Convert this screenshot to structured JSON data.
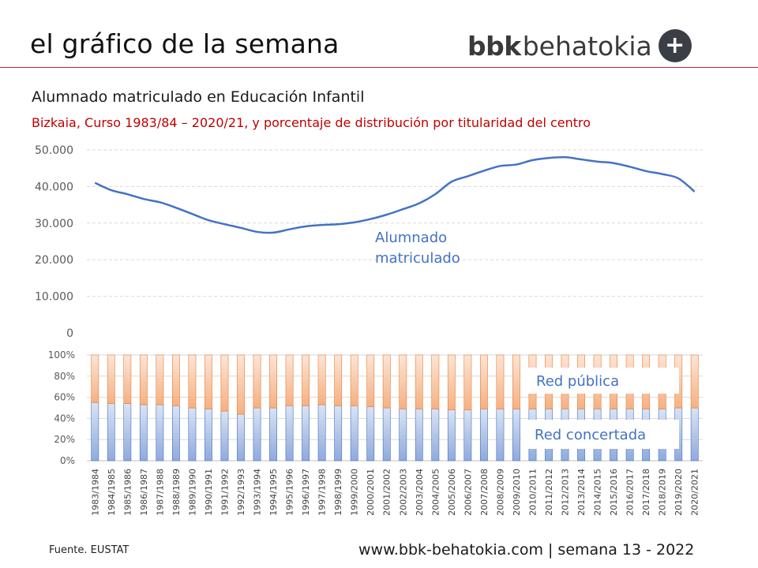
{
  "header": {
    "title": "el gráfico de la semana",
    "brand_bold": "bbk",
    "brand_light": "behatokia",
    "brand_icon": "plus-icon"
  },
  "colors": {
    "accent_rule": "#c62828",
    "line": "#4472c4",
    "bar_public": "#f4b183",
    "bar_concertada": "#8faadc",
    "subtitle": "#c00000"
  },
  "footer": {
    "source": "Fuente.   EUSTAT",
    "site": "www.bbk-behatokia.com | semana 13 - 2022"
  },
  "chart_data": {
    "title": "Alumnado matriculado en Educación Infantil",
    "subtitle": "Bizkaia, Curso 1983/84 – 2020/21, y porcentaje de distribución por titularidad del centro",
    "categories": [
      "1983/1984",
      "1984/1985",
      "1985/1986",
      "1986/1987",
      "1987/1988",
      "1988/1989",
      "1989/1990",
      "1990/1991",
      "1991/1992",
      "1992/1993",
      "1993/1994",
      "1994/1995",
      "1995/1996",
      "1996/1997",
      "1997/1998",
      "1998/1999",
      "1999/2000",
      "2000/2001",
      "2001/2002",
      "2002/2003",
      "2003/2004",
      "2004/2005",
      "2005/2006",
      "2006/2007",
      "2007/2008",
      "2008/2009",
      "2009/2010",
      "2010/2011",
      "2011/2012",
      "2012/2013",
      "2013/2014",
      "2014/2015",
      "2015/2016",
      "2016/2017",
      "2017/2018",
      "2018/2019",
      "2019/2020",
      "2020/2021"
    ],
    "charts": [
      {
        "type": "line",
        "series": [
          {
            "name": "Alumnado matriculado",
            "values": [
              41000,
              39000,
              37900,
              36600,
              35700,
              34200,
              32500,
              30800,
              29700,
              28700,
              27600,
              27400,
              28300,
              29100,
              29500,
              29700,
              30200,
              31100,
              32300,
              33800,
              35400,
              37900,
              41300,
              42800,
              44300,
              45600,
              46000,
              47200,
              47800,
              48000,
              47400,
              46800,
              46400,
              45400,
              44200,
              43400,
              42200,
              38600
            ]
          }
        ],
        "ylim": [
          0,
          50000
        ],
        "yticks": [
          "0",
          "10.000",
          "20.000",
          "30.000",
          "40.000",
          "50.000"
        ],
        "ytick_values": [
          0,
          10000,
          20000,
          30000,
          40000,
          50000
        ],
        "grid": true
      },
      {
        "type": "bar",
        "stacked": true,
        "series": [
          {
            "name": "Red concertada",
            "values": [
              55,
              54,
              54,
              53,
              53,
              52,
              50,
              49,
              47,
              44,
              50,
              50,
              52,
              52,
              53,
              52,
              52,
              51,
              50,
              49,
              49,
              49,
              48,
              48,
              49,
              49,
              49,
              49,
              49,
              49,
              49,
              49,
              49,
              49,
              49,
              49,
              50,
              50
            ]
          },
          {
            "name": "Red pública",
            "values": [
              45,
              46,
              46,
              47,
              47,
              48,
              50,
              51,
              53,
              56,
              50,
              50,
              48,
              48,
              47,
              48,
              48,
              49,
              50,
              51,
              51,
              51,
              52,
              52,
              51,
              51,
              51,
              51,
              51,
              51,
              51,
              51,
              51,
              51,
              51,
              51,
              50,
              50
            ]
          }
        ],
        "ylim": [
          0,
          100
        ],
        "yticks": [
          "0%",
          "20%",
          "40%",
          "60%",
          "80%",
          "100%"
        ],
        "ytick_values": [
          0,
          20,
          40,
          60,
          80,
          100
        ],
        "grid": true
      }
    ]
  }
}
